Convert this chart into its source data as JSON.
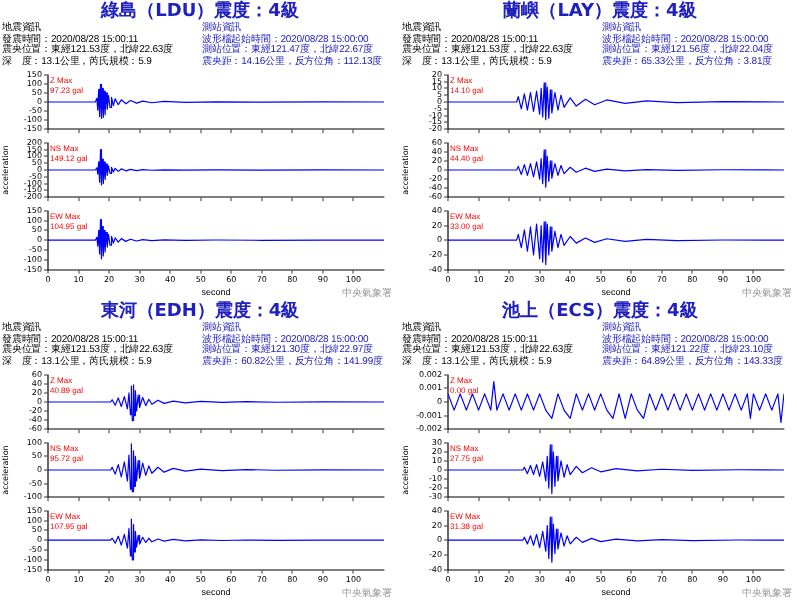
{
  "chart_data": [
    {
      "type": "line",
      "title": "綠島（LDU）震度：4級",
      "annotations": [
        "Z Max\n97.23 gal",
        "地震資訊",
        "發震時間：2020/08/28 15:00:11",
        "震央位置：東經121.53度，北緯22.63度",
        "深　度：13.1公里，芮氏規模：5.9",
        "測站資訊",
        "波形檔起始時間：2020/08/28 15:00:00",
        "測站位置：東經121.47度，北緯22.67度",
        "震央距：14.16公里，反方位角：112.13度"
      ],
      "xlim": [
        0,
        110
      ],
      "xticks": [
        0,
        10,
        20,
        30,
        40,
        50,
        60,
        70,
        80,
        90,
        100
      ],
      "ylim": [
        -150,
        150
      ],
      "yticks": [
        -150,
        -100,
        -50,
        0,
        50,
        100,
        150
      ],
      "tick_labels": "y",
      "series": [
        {
          "color": "#0000ff",
          "x": [
            0,
            15.5,
            16,
            16.3,
            16.6,
            16.9,
            17.2,
            17.5,
            17.8,
            18.1,
            18.4,
            18.7,
            19,
            19.4,
            19.8,
            20.3,
            20.8,
            21.4,
            22,
            23,
            24,
            25.5,
            27,
            29,
            31,
            34,
            38,
            45,
            55,
            70,
            90,
            110
          ],
          "values": [
            0,
            0,
            20,
            -45,
            70,
            -80,
            97.23,
            -90,
            75,
            -85,
            60,
            -70,
            50,
            -40,
            35,
            -30,
            25,
            -20,
            18,
            -15,
            12,
            -10,
            8,
            -6,
            5,
            -4,
            3,
            -2,
            1,
            -1,
            0.5,
            0
          ]
        }
      ]
    },
    {
      "type": "line",
      "ylabel": "acceleration",
      "annotations": [
        "NS Max\n149.12 gal"
      ],
      "xlim": [
        0,
        110
      ],
      "xticks": [
        0,
        10,
        20,
        30,
        40,
        50,
        60,
        70,
        80,
        90,
        100
      ],
      "ylim": [
        -200,
        200
      ],
      "yticks": [
        -200,
        -150,
        -100,
        -50,
        0,
        50,
        100,
        150,
        200
      ],
      "tick_labels": "y",
      "series": [
        {
          "color": "#0000ff",
          "x": [
            0,
            15.5,
            16,
            16.3,
            16.6,
            16.9,
            17.2,
            17.5,
            17.8,
            18.1,
            18.4,
            18.7,
            19,
            19.4,
            19.8,
            20.3,
            20.8,
            21.4,
            22,
            23,
            24,
            25.5,
            27,
            29,
            31,
            34,
            38,
            45,
            55,
            70,
            90,
            110
          ],
          "values": [
            0,
            0,
            15,
            -30,
            60,
            -90,
            149.12,
            -110,
            80,
            -100,
            60,
            -70,
            45,
            -40,
            30,
            -25,
            20,
            -15,
            12,
            -10,
            8,
            -6,
            5,
            -4,
            3,
            -2,
            1.5,
            -1,
            1,
            -0.5,
            0.3,
            0
          ]
        }
      ]
    },
    {
      "type": "line",
      "xlabel": "second",
      "annotations": [
        "EW Max\n104.95 gal",
        "中央氣象署"
      ],
      "xlim": [
        0,
        110
      ],
      "xticks": [
        0,
        10,
        20,
        30,
        40,
        50,
        60,
        70,
        80,
        90,
        100
      ],
      "ylim": [
        -150,
        150
      ],
      "yticks": [
        -150,
        -100,
        -50,
        0,
        50,
        100,
        150
      ],
      "series": [
        {
          "color": "#0000ff",
          "x": [
            0,
            15.5,
            16,
            16.3,
            16.6,
            16.9,
            17.2,
            17.5,
            17.8,
            18.1,
            18.4,
            18.7,
            19,
            19.4,
            19.8,
            20.3,
            20.8,
            21.4,
            22,
            23,
            24,
            25.5,
            27,
            29,
            31,
            34,
            38,
            45,
            55,
            70,
            90,
            110
          ],
          "values": [
            0,
            0,
            15,
            -30,
            50,
            -70,
            104.95,
            -95,
            70,
            -80,
            50,
            -60,
            40,
            -35,
            30,
            -25,
            20,
            -15,
            12,
            -10,
            8,
            -6,
            5,
            -4,
            3,
            -2,
            1.5,
            -1,
            1,
            -0.5,
            0.3,
            0
          ]
        }
      ]
    },
    {
      "type": "line",
      "title": "蘭嶼（LAY）震度：4級",
      "annotations": [
        "Z Max\n14.10 gal",
        "地震資訊",
        "發震時間：2020/08/28 15:00:11",
        "震央位置：東經121.53度，北緯22.63度",
        "深　度：13.1公里，芮氏規模：5.9",
        "測站資訊",
        "波形檔起始時間：2020/08/28 15:00:00",
        "測站位置：東經121.56度，北緯22.04度",
        "震央距：65.33公里，反方位角：3.81度"
      ],
      "xlim": [
        0,
        110
      ],
      "xticks": [
        0,
        10,
        20,
        30,
        40,
        50,
        60,
        70,
        80,
        90,
        100
      ],
      "ylim": [
        -20,
        20
      ],
      "yticks": [
        -20,
        -15,
        -10,
        -5,
        0,
        5,
        10,
        15,
        20
      ],
      "tick_labels": "y",
      "series": [
        {
          "color": "#0000ff",
          "x": [
            0,
            22.5,
            23,
            24,
            25,
            26,
            27,
            28,
            29,
            30,
            30.5,
            31,
            31.5,
            32,
            32.5,
            33,
            33.5,
            34,
            35,
            36,
            37,
            38,
            40,
            42,
            45,
            48,
            52,
            58,
            65,
            75,
            90,
            110
          ],
          "values": [
            0,
            0,
            4,
            -5,
            6,
            -6,
            7,
            -7,
            8,
            -9,
            10,
            -11,
            14.1,
            -13,
            11,
            -12,
            9,
            -8,
            7,
            -6,
            5,
            -4,
            3,
            -3,
            2,
            -2,
            1.5,
            -1,
            0.8,
            -0.5,
            0.3,
            0
          ]
        }
      ]
    },
    {
      "type": "line",
      "ylabel": "acceleration",
      "annotations": [
        "NS Max\n44.40 gal"
      ],
      "xlim": [
        0,
        110
      ],
      "xticks": [
        0,
        10,
        20,
        30,
        40,
        50,
        60,
        70,
        80,
        90,
        100
      ],
      "ylim": [
        -60,
        60
      ],
      "yticks": [
        -60,
        -40,
        -20,
        0,
        20,
        40,
        60
      ],
      "tick_labels": "y",
      "series": [
        {
          "color": "#0000ff",
          "x": [
            0,
            22.5,
            23,
            24,
            25,
            26,
            27,
            28,
            29,
            30,
            30.5,
            31,
            31.5,
            32,
            32.5,
            33,
            33.5,
            34,
            35,
            36,
            37,
            38,
            40,
            42,
            45,
            48,
            52,
            58,
            65,
            75,
            90,
            110
          ],
          "values": [
            0,
            0,
            8,
            -10,
            12,
            -12,
            14,
            -15,
            18,
            -20,
            25,
            -30,
            44.4,
            -38,
            30,
            -25,
            20,
            -18,
            14,
            -12,
            10,
            -8,
            6,
            -5,
            4,
            -3,
            2,
            -2,
            1,
            -1,
            0.5,
            0
          ]
        }
      ]
    },
    {
      "type": "line",
      "xlabel": "second",
      "annotations": [
        "EW Max\n33.00 gal",
        "中央氣象署"
      ],
      "xlim": [
        0,
        110
      ],
      "xticks": [
        0,
        10,
        20,
        30,
        40,
        50,
        60,
        70,
        80,
        90,
        100
      ],
      "ylim": [
        -40,
        40
      ],
      "yticks": [
        -40,
        -20,
        0,
        20,
        40
      ],
      "series": [
        {
          "color": "#0000ff",
          "x": [
            0,
            22.5,
            23,
            24,
            25,
            26,
            27,
            28,
            29,
            30,
            30.5,
            31,
            31.5,
            32,
            32.5,
            33,
            33.5,
            34,
            35,
            36,
            37,
            38,
            40,
            42,
            45,
            48,
            52,
            58,
            65,
            75,
            90,
            110
          ],
          "values": [
            0,
            0,
            8,
            -10,
            14,
            -15,
            18,
            -20,
            22,
            -25,
            20,
            -30,
            25,
            -33,
            22,
            -20,
            18,
            -15,
            12,
            -10,
            8,
            -7,
            5,
            -4,
            3,
            -3,
            2,
            -1.5,
            1,
            -0.5,
            0.3,
            0
          ]
        }
      ]
    },
    {
      "type": "line",
      "title": "東河（EDH）震度：4級",
      "annotations": [
        "Z Max\n40.89 gal",
        "地震資訊",
        "發震時間：2020/08/28 15:00:11",
        "震央位置：東經121.53度，北緯22.63度",
        "深　度：13.1公里，芮氏規模：5.9",
        "測站資訊",
        "波形檔起始時間：2020/08/28 15:00:00",
        "測站位置：東經121.30度，北緯22.97度",
        "震央距：60.82公里，反方位角：141.99度"
      ],
      "xlim": [
        0,
        110
      ],
      "xticks": [
        0,
        10,
        20,
        30,
        40,
        50,
        60,
        70,
        80,
        90,
        100
      ],
      "ylim": [
        -60,
        60
      ],
      "yticks": [
        -60,
        -40,
        -20,
        0,
        20,
        40,
        60
      ],
      "tick_labels": "y",
      "series": [
        {
          "color": "#0000ff",
          "x": [
            0,
            20.5,
            21,
            22,
            23,
            24,
            25,
            26,
            26.5,
            27,
            27.3,
            27.6,
            28,
            28.3,
            28.6,
            29,
            29.5,
            30,
            31,
            32,
            33,
            34,
            36,
            38,
            41,
            45,
            50,
            57,
            65,
            75,
            90,
            110
          ],
          "values": [
            0,
            0,
            5,
            -7,
            9,
            -10,
            12,
            -15,
            20,
            -28,
            35,
            -40.89,
            38,
            -30,
            25,
            -20,
            15,
            -12,
            10,
            -8,
            6,
            -5,
            4,
            -3,
            2,
            -2,
            1.5,
            -1,
            0.8,
            -0.5,
            0.3,
            0
          ]
        }
      ]
    },
    {
      "type": "line",
      "ylabel": "acceleration",
      "annotations": [
        "NS Max\n95.72 gal"
      ],
      "xlim": [
        0,
        110
      ],
      "xticks": [
        0,
        10,
        20,
        30,
        40,
        50,
        60,
        70,
        80,
        90,
        100
      ],
      "ylim": [
        -100,
        100
      ],
      "yticks": [
        -100,
        -50,
        0,
        50,
        100
      ],
      "tick_labels": "y",
      "series": [
        {
          "color": "#0000ff",
          "x": [
            0,
            20.5,
            21,
            22,
            23,
            24,
            25,
            26,
            26.5,
            27,
            27.3,
            27.6,
            28,
            28.3,
            28.6,
            29,
            29.5,
            30,
            31,
            32,
            33,
            34,
            36,
            38,
            41,
            45,
            50,
            57,
            65,
            75,
            90,
            110
          ],
          "values": [
            0,
            0,
            10,
            -15,
            20,
            -25,
            30,
            -40,
            55,
            -70,
            95.72,
            -80,
            70,
            -60,
            50,
            -40,
            35,
            -30,
            25,
            -20,
            15,
            -12,
            10,
            -8,
            6,
            -4,
            3,
            -2,
            1.5,
            -1,
            0.5,
            0
          ]
        }
      ]
    },
    {
      "type": "line",
      "xlabel": "second",
      "annotations": [
        "EW Max\n107.95 gal",
        "中央氣象署"
      ],
      "xlim": [
        0,
        110
      ],
      "xticks": [
        0,
        10,
        20,
        30,
        40,
        50,
        60,
        70,
        80,
        90,
        100
      ],
      "ylim": [
        -150,
        150
      ],
      "yticks": [
        -150,
        -100,
        -50,
        0,
        50,
        100,
        150
      ],
      "series": [
        {
          "color": "#0000ff",
          "x": [
            0,
            20.5,
            21,
            22,
            23,
            24,
            25,
            26,
            26.5,
            27,
            27.3,
            27.6,
            28,
            28.3,
            28.6,
            29,
            29.5,
            30,
            31,
            32,
            33,
            34,
            36,
            38,
            41,
            45,
            50,
            57,
            65,
            75,
            90,
            110
          ],
          "values": [
            0,
            0,
            10,
            -15,
            20,
            -25,
            30,
            -40,
            60,
            -80,
            107.95,
            -100,
            80,
            -60,
            45,
            -35,
            25,
            -20,
            15,
            -12,
            10,
            -8,
            6,
            -5,
            4,
            -3,
            2,
            -1.5,
            1,
            -0.5,
            0.3,
            0
          ]
        }
      ]
    },
    {
      "type": "line",
      "title": "池上（ECS）震度：4級",
      "annotations": [
        "Z Max\n0.00 gal",
        "地震資訊",
        "發震時間：2020/08/28 15:00:11",
        "震央位置：東經121.53度，北緯22.63度",
        "深　度：13.1公里，芮氏規模：5.9",
        "測站資訊",
        "波形檔起始時間：2020/08/28 15:00:00",
        "測站位置：東經121.22度，北緯23.10度",
        "震央距：64.89公里，反方位角：143.33度"
      ],
      "xlim": [
        0,
        110
      ],
      "xticks": [
        0,
        10,
        20,
        30,
        40,
        50,
        60,
        70,
        80,
        90,
        100
      ],
      "ylim": [
        -0.002,
        0.002
      ],
      "yticks": [
        -0.002,
        -0.001,
        0,
        0.001,
        0.002
      ],
      "tick_labels": "y",
      "series": [
        {
          "color": "#0000ff",
          "x": [
            0,
            2,
            4,
            6,
            8,
            10,
            12,
            14,
            15,
            16,
            18,
            20,
            22,
            24,
            26,
            28,
            30,
            32,
            34,
            36,
            38,
            40,
            42,
            44,
            46,
            48,
            50,
            52,
            54,
            56,
            58,
            60,
            62,
            64,
            66,
            68,
            70,
            72,
            74,
            76,
            78,
            80,
            82,
            84,
            86,
            88,
            90,
            92,
            94,
            96,
            98,
            99,
            100,
            102,
            104,
            106,
            108,
            109,
            110
          ],
          "values": [
            0.0006,
            -0.0006,
            0.0006,
            -0.0006,
            0.0006,
            -0.0006,
            0.0006,
            -0.0006,
            0.0015,
            -0.0006,
            0.0006,
            -0.0006,
            0.0006,
            -0.0006,
            0.0006,
            -0.0006,
            0.0006,
            -0.0006,
            -0.0012,
            0.0006,
            -0.0006,
            -0.0012,
            0.0006,
            -0.0006,
            0.0006,
            -0.0006,
            0.0006,
            -0.0006,
            -0.0012,
            0.0006,
            -0.0012,
            0.0006,
            -0.0006,
            -0.0012,
            0.0006,
            -0.0006,
            0.0006,
            -0.0006,
            0.0006,
            -0.0006,
            0.0006,
            -0.0006,
            0.0006,
            -0.0006,
            0.0006,
            -0.0006,
            0.0006,
            -0.0006,
            0.0006,
            -0.0006,
            0.0006,
            -0.0012,
            0.0006,
            -0.0006,
            0.0006,
            -0.0006,
            0.0006,
            -0.0015,
            0.0006
          ]
        }
      ]
    },
    {
      "type": "line",
      "ylabel": "acceleration",
      "annotations": [
        "NS Max\n27.75 gal"
      ],
      "xlim": [
        0,
        110
      ],
      "xticks": [
        0,
        10,
        20,
        30,
        40,
        50,
        60,
        70,
        80,
        90,
        100
      ],
      "ylim": [
        -30,
        30
      ],
      "yticks": [
        -30,
        -20,
        -10,
        0,
        10,
        20,
        30
      ],
      "tick_labels": "y",
      "series": [
        {
          "color": "#0000ff",
          "x": [
            0,
            24.5,
            25,
            26,
            27,
            28,
            29,
            30,
            31,
            32,
            32.5,
            33,
            33.5,
            34,
            34.5,
            35,
            35.5,
            36,
            37,
            38,
            39,
            40,
            42,
            44,
            47,
            50,
            55,
            62,
            70,
            80,
            95,
            110
          ],
          "values": [
            0,
            0,
            3,
            -4,
            5,
            -5,
            6,
            -7,
            9,
            -12,
            15,
            -20,
            27.75,
            -26,
            20,
            -18,
            15,
            -12,
            10,
            -8,
            6,
            -5,
            4,
            -3,
            2.5,
            -2,
            1.5,
            -1,
            0.8,
            -0.5,
            0.3,
            0
          ]
        }
      ]
    },
    {
      "type": "line",
      "xlabel": "second",
      "annotations": [
        "EW Max\n31.38 gal",
        "中央氣象署"
      ],
      "xlim": [
        0,
        110
      ],
      "xticks": [
        0,
        10,
        20,
        30,
        40,
        50,
        60,
        70,
        80,
        90,
        100
      ],
      "ylim": [
        -40,
        40
      ],
      "yticks": [
        -40,
        -20,
        0,
        20,
        40
      ],
      "series": [
        {
          "color": "#0000ff",
          "x": [
            0,
            24.5,
            25,
            26,
            27,
            28,
            29,
            30,
            31,
            32,
            32.5,
            33,
            33.5,
            34,
            34.5,
            35,
            35.5,
            36,
            37,
            38,
            39,
            40,
            42,
            44,
            47,
            50,
            55,
            62,
            70,
            80,
            95,
            110
          ],
          "values": [
            0,
            0,
            4,
            -5,
            6,
            -7,
            8,
            -10,
            12,
            -15,
            20,
            -25,
            31.38,
            -30,
            22,
            -18,
            15,
            -12,
            10,
            -8,
            6,
            -5,
            4,
            -3,
            2.5,
            -2,
            1.5,
            -1,
            0.8,
            -0.5,
            0.3,
            0
          ]
        }
      ]
    }
  ]
}
